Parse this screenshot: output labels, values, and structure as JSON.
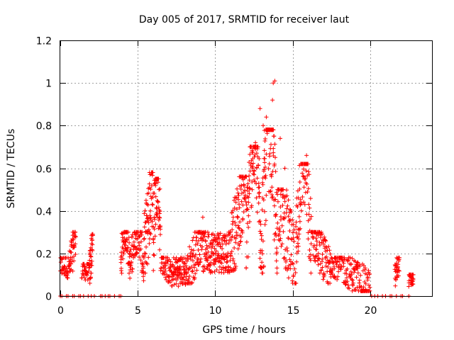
{
  "chart_data": {
    "type": "scatter",
    "title": "Day 005 of 2017, SRMTID for receiver laut",
    "xlabel": "GPS time / hours",
    "ylabel": "SRMTID / TECUs",
    "xlim": [
      0,
      24
    ],
    "ylim": [
      0,
      1.2
    ],
    "xticks": [
      0,
      5,
      10,
      15,
      20
    ],
    "xtick_labels": [
      "0",
      "5",
      "10",
      "15",
      "20"
    ],
    "yticks": [
      0,
      0.2,
      0.4,
      0.6,
      0.8,
      1.0,
      1.2
    ],
    "ytick_labels": [
      "0",
      "0.2",
      "0.4",
      "0.6",
      "0.8",
      "1",
      "1.2"
    ],
    "grid": true,
    "marker": "+",
    "series_color": "#ff0000",
    "segments": [
      {
        "t0": 0.0,
        "t1": 0.6,
        "base": 0.1,
        "peak": 0.18,
        "shape": "flat",
        "n": 40
      },
      {
        "t0": 0.6,
        "t1": 1.0,
        "base": 0.12,
        "peak": 0.3,
        "shape": "ramp",
        "n": 40
      },
      {
        "t0": 1.4,
        "t1": 1.9,
        "base": 0.09,
        "peak": 0.15,
        "shape": "flat",
        "n": 40
      },
      {
        "t0": 1.9,
        "t1": 2.1,
        "base": 0.1,
        "peak": 0.29,
        "shape": "ramp",
        "n": 30
      },
      {
        "t0": 3.9,
        "t1": 4.5,
        "base": 0.14,
        "peak": 0.3,
        "shape": "bump",
        "n": 60
      },
      {
        "t0": 4.5,
        "t1": 5.4,
        "base": 0.12,
        "peak": 0.3,
        "shape": "bump",
        "n": 80
      },
      {
        "t0": 5.4,
        "t1": 6.0,
        "base": 0.18,
        "peak": 0.58,
        "shape": "ramp",
        "n": 70
      },
      {
        "t0": 6.0,
        "t1": 6.5,
        "base": 0.2,
        "peak": 0.55,
        "shape": "bump",
        "n": 60
      },
      {
        "t0": 6.5,
        "t1": 7.3,
        "base": 0.08,
        "peak": 0.18,
        "shape": "decay",
        "n": 60
      },
      {
        "t0": 7.3,
        "t1": 8.2,
        "base": 0.06,
        "peak": 0.18,
        "shape": "flat",
        "n": 80
      },
      {
        "t0": 8.2,
        "t1": 9.2,
        "base": 0.1,
        "peak": 0.3,
        "shape": "ramp",
        "n": 80
      },
      {
        "t0": 9.2,
        "t1": 11.0,
        "base": 0.12,
        "peak": 0.3,
        "shape": "flat",
        "n": 160
      },
      {
        "t0": 11.0,
        "t1": 12.0,
        "base": 0.2,
        "peak": 0.56,
        "shape": "ramp",
        "n": 100
      },
      {
        "t0": 12.0,
        "t1": 13.0,
        "base": 0.22,
        "peak": 0.7,
        "shape": "bump",
        "n": 110
      },
      {
        "t0": 13.0,
        "t1": 14.0,
        "base": 0.18,
        "peak": 0.78,
        "shape": "bump",
        "n": 110
      },
      {
        "t0": 14.0,
        "t1": 15.2,
        "base": 0.1,
        "peak": 0.5,
        "shape": "decay",
        "n": 100
      },
      {
        "t0": 15.2,
        "t1": 16.2,
        "base": 0.18,
        "peak": 0.62,
        "shape": "bump",
        "n": 90
      },
      {
        "t0": 16.2,
        "t1": 17.5,
        "base": 0.1,
        "peak": 0.3,
        "shape": "decay",
        "n": 100
      },
      {
        "t0": 17.5,
        "t1": 20.0,
        "base": 0.04,
        "peak": 0.18,
        "shape": "decay",
        "n": 160
      },
      {
        "t0": 21.6,
        "t1": 21.9,
        "base": 0.08,
        "peak": 0.18,
        "shape": "ramp",
        "n": 30
      },
      {
        "t0": 22.5,
        "t1": 22.8,
        "base": 0.06,
        "peak": 0.1,
        "shape": "flat",
        "n": 30
      }
    ],
    "outliers": [
      [
        13.75,
        1.0
      ],
      [
        13.85,
        1.01
      ],
      [
        13.7,
        0.92
      ],
      [
        12.9,
        0.88
      ],
      [
        13.3,
        0.84
      ],
      [
        13.1,
        0.8
      ],
      [
        14.2,
        0.74
      ],
      [
        12.6,
        0.72
      ],
      [
        5.8,
        0.57
      ],
      [
        6.2,
        0.54
      ],
      [
        15.9,
        0.66
      ],
      [
        14.5,
        0.6
      ],
      [
        12.3,
        0.62
      ],
      [
        9.2,
        0.37
      ]
    ],
    "zero_points": [
      0.0,
      0.1,
      0.4,
      0.5,
      0.8,
      0.9,
      1.2,
      1.3,
      1.5,
      1.8,
      2.0,
      2.2,
      2.6,
      2.7,
      2.9,
      3.1,
      3.2,
      3.5,
      3.8,
      3.9,
      20.1,
      20.3,
      20.5,
      20.8,
      21.0,
      21.3,
      21.4,
      21.7,
      22.0,
      22.1,
      22.5
    ]
  }
}
